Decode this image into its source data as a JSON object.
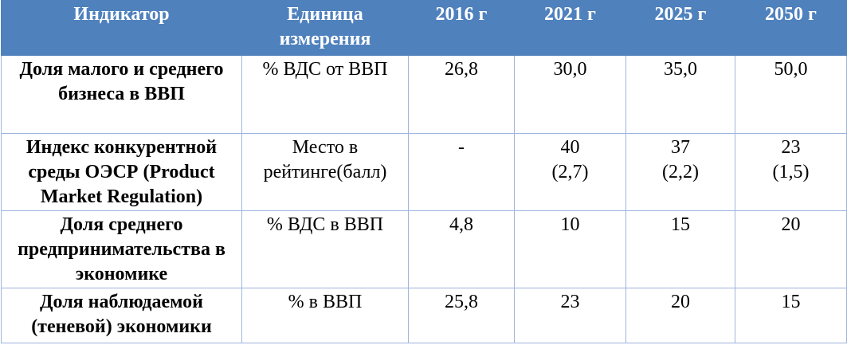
{
  "table": {
    "header": [
      "Индикатор",
      "Единица измерения",
      "2016 г",
      "2021 г",
      "2025 г",
      "2050 г"
    ],
    "rows": [
      [
        "Доля малого и среднего бизнеса в ВВП",
        "% ВДС от ВВП",
        "26,8",
        "30,0",
        "35,0",
        "50,0"
      ],
      [
        "Индекс конкурентной среды ОЭСР (Product Market Regulation)",
        "Место в рейтинге(балл)",
        "-",
        "40\n(2,7)",
        "37\n(2,2)",
        "23\n(1,5)"
      ],
      [
        "Доля среднего предпринимательства в экономике",
        "% ВДС в ВВП",
        "4,8",
        "10",
        "15",
        "20"
      ],
      [
        "Доля наблюдаемой (теневой) экономики",
        "% в ВВП",
        "25,8",
        "23",
        "20",
        "15"
      ]
    ]
  }
}
